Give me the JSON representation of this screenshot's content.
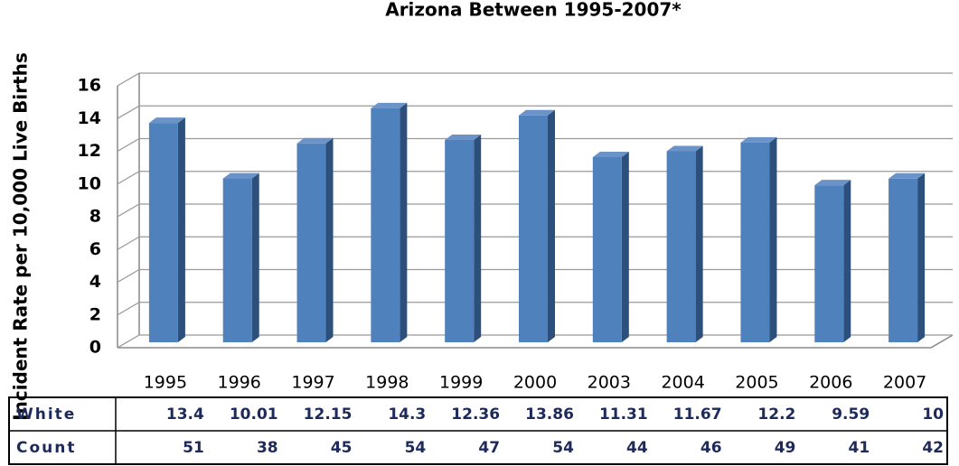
{
  "chart_data": {
    "type": "bar",
    "title": "Arizona Between 1995-2007*",
    "ylabel": "Incident Rate per 10,000 Live Births",
    "categories": [
      "1995",
      "1996",
      "1997",
      "1998",
      "1999",
      "2000",
      "2003",
      "2004",
      "2005",
      "2006",
      "2007"
    ],
    "series": [
      {
        "name": "White",
        "color": "#4f81bd",
        "values": [
          13.4,
          10.01,
          12.15,
          14.3,
          12.36,
          13.86,
          11.31,
          11.67,
          12.2,
          9.59,
          10
        ]
      }
    ],
    "table": {
      "rows": [
        {
          "name": "Count",
          "values": [
            51,
            38,
            45,
            54,
            47,
            54,
            44,
            46,
            49,
            41,
            42
          ]
        }
      ]
    },
    "ylim": [
      0,
      16
    ],
    "yticks": [
      0,
      2,
      4,
      6,
      8,
      10,
      12,
      14,
      16
    ],
    "grid": true
  }
}
